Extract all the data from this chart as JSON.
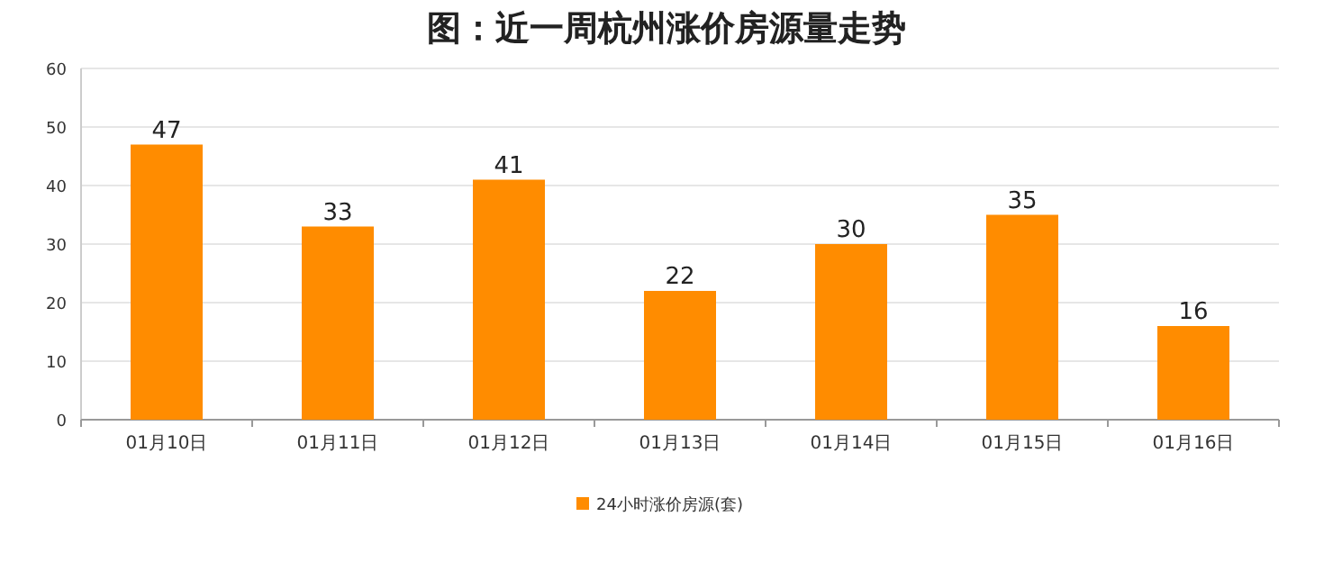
{
  "chart_data": {
    "type": "bar",
    "title": "图：近一周杭州涨价房源量走势",
    "categories": [
      "01月10日",
      "01月11日",
      "01月12日",
      "01月13日",
      "01月14日",
      "01月15日",
      "01月16日"
    ],
    "series": [
      {
        "name": "24小时涨价房源(套)",
        "color": "#ff8c00",
        "values": [
          47,
          33,
          41,
          22,
          30,
          35,
          16
        ]
      }
    ],
    "ylim": [
      0,
      60
    ],
    "yticks": [
      0,
      10,
      20,
      30,
      40,
      50,
      60
    ],
    "grid": "y",
    "data_labels": true,
    "legend": "bottom"
  }
}
